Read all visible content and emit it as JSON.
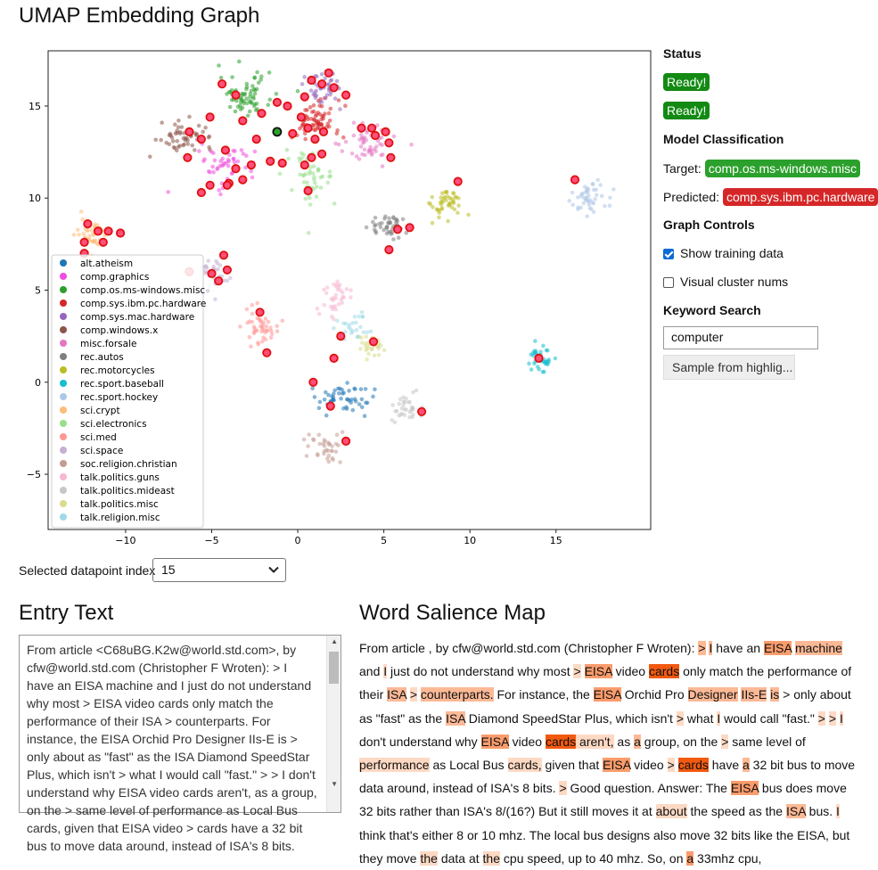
{
  "page_title": "UMAP Embedding Graph",
  "status": {
    "heading": "Status",
    "badges": [
      "Ready!",
      "Ready!"
    ]
  },
  "model": {
    "heading": "Model Classification",
    "target_label": "Target:",
    "target_value": "comp.os.ms-windows.misc",
    "predicted_label": "Predicted:",
    "predicted_value": "comp.sys.ibm.pc.hardware"
  },
  "graph_controls": {
    "heading": "Graph Controls",
    "show_training": {
      "label": "Show training data",
      "checked": true
    },
    "cluster_nums": {
      "label": "Visual cluster nums",
      "checked": false
    }
  },
  "keyword": {
    "heading": "Keyword Search",
    "value": "computer",
    "button": "Sample from highlig..."
  },
  "selection": {
    "label": "Selected datapoint index",
    "value": "15"
  },
  "entry": {
    "heading": "Entry Text",
    "text": "From article <C68uBG.K2w@world.std.com>, by cfw@world.std.com (Christopher F Wroten): > I have an EISA machine and I just do not understand why most > EISA video cards only match the performance of their ISA > counterparts. For instance, the EISA Orchid Pro Designer IIs-E is > only about as \"fast\" as the ISA Diamond SpeedStar Plus, which isn't > what I would call \"fast.\" > > I don't understand why EISA video cards aren't, as a group, on the > same level of performance as Local Bus cards, given that EISA video > cards have a 32 bit bus to move data around, instead of ISA's 8 bits."
  },
  "salience": {
    "heading": "Word Salience Map",
    "tokens": [
      {
        "t": "From article , by cfw@world.std.com (Christopher F Wroten): ",
        "w": 0
      },
      {
        "t": ">",
        "w": 2
      },
      {
        "t": " ",
        "w": 0
      },
      {
        "t": "I",
        "w": 2
      },
      {
        "t": " have an ",
        "w": 0
      },
      {
        "t": "EISA",
        "w": 3
      },
      {
        "t": " ",
        "w": 0
      },
      {
        "t": "machine",
        "w": 2
      },
      {
        "t": " and ",
        "w": 0
      },
      {
        "t": "I",
        "w": 1
      },
      {
        "t": " just do not understand why most ",
        "w": 0
      },
      {
        "t": ">",
        "w": 1
      },
      {
        "t": " ",
        "w": 0
      },
      {
        "t": "EISA",
        "w": 3
      },
      {
        "t": " video ",
        "w": 0
      },
      {
        "t": "cards",
        "w": 4
      },
      {
        "t": " only match the performance of their ",
        "w": 0
      },
      {
        "t": "ISA",
        "w": 2
      },
      {
        "t": " ",
        "w": 0
      },
      {
        "t": ">",
        "w": 1
      },
      {
        "t": " ",
        "w": 0
      },
      {
        "t": "counterparts.",
        "w": 2
      },
      {
        "t": " For instance, the ",
        "w": 0
      },
      {
        "t": "EISA",
        "w": 3
      },
      {
        "t": " Orchid Pro ",
        "w": 0
      },
      {
        "t": "Designer",
        "w": 2
      },
      {
        "t": " ",
        "w": 0
      },
      {
        "t": "IIs-E",
        "w": 2
      },
      {
        "t": " ",
        "w": 0
      },
      {
        "t": "is",
        "w": 2
      },
      {
        "t": " > only about as \"fast\" as the ",
        "w": 0
      },
      {
        "t": "ISA",
        "w": 2
      },
      {
        "t": " Diamond SpeedStar Plus, which isn't ",
        "w": 0
      },
      {
        "t": ">",
        "w": 1
      },
      {
        "t": " what ",
        "w": 0
      },
      {
        "t": "I",
        "w": 1
      },
      {
        "t": " would call \"fast.\" ",
        "w": 0
      },
      {
        "t": ">",
        "w": 1
      },
      {
        "t": " ",
        "w": 0
      },
      {
        "t": ">",
        "w": 1
      },
      {
        "t": " ",
        "w": 0
      },
      {
        "t": "I",
        "w": 1
      },
      {
        "t": " don't understand why ",
        "w": 0
      },
      {
        "t": "EISA",
        "w": 3
      },
      {
        "t": " video ",
        "w": 0
      },
      {
        "t": "cards",
        "w": 4
      },
      {
        "t": " aren't,",
        "w": 1
      },
      {
        "t": " as ",
        "w": 0
      },
      {
        "t": "a",
        "w": 2
      },
      {
        "t": " group, on the ",
        "w": 0
      },
      {
        "t": ">",
        "w": 1
      },
      {
        "t": " same level of ",
        "w": 0
      },
      {
        "t": "performance",
        "w": 1
      },
      {
        "t": " as Local Bus ",
        "w": 0
      },
      {
        "t": "cards,",
        "w": 1
      },
      {
        "t": " given that ",
        "w": 0
      },
      {
        "t": "EISA",
        "w": 3
      },
      {
        "t": " video ",
        "w": 0
      },
      {
        "t": ">",
        "w": 1
      },
      {
        "t": " ",
        "w": 0
      },
      {
        "t": "cards",
        "w": 4
      },
      {
        "t": " have ",
        "w": 0
      },
      {
        "t": "a",
        "w": 2
      },
      {
        "t": " 32 bit bus to move data around, instead of ISA's 8 bits. ",
        "w": 0
      },
      {
        "t": ">",
        "w": 1
      },
      {
        "t": " Good",
        "w": 0
      },
      {
        "t": " question. Answer: The ",
        "w": 0
      },
      {
        "t": "EISA",
        "w": 3
      },
      {
        "t": " bus does move 32 bits rather than ISA's 8/(16?) But it still moves it at ",
        "w": 0
      },
      {
        "t": "about",
        "w": 1
      },
      {
        "t": " the speed as the ",
        "w": 0
      },
      {
        "t": "ISA",
        "w": 2
      },
      {
        "t": " bus. ",
        "w": 0
      },
      {
        "t": "I",
        "w": 1
      },
      {
        "t": " think that's either 8 or 10 mhz. The local bus designs also move",
        "w": 0
      },
      {
        "t": " 32 bits like the EISA, but they move ",
        "w": 0
      },
      {
        "t": "the",
        "w": 1
      },
      {
        "t": " data at ",
        "w": 0
      },
      {
        "t": "the",
        "w": 1
      },
      {
        "t": " cpu speed, up to 40 mhz. So, on ",
        "w": 0
      },
      {
        "t": "a",
        "w": 3
      },
      {
        "t": " 33mhz cpu,",
        "w": 0
      }
    ]
  },
  "chart_data": {
    "type": "scatter",
    "title": "",
    "xlabel": "",
    "ylabel": "",
    "xlim": [
      -14.5,
      20.5
    ],
    "ylim": [
      -8,
      18
    ],
    "xticks": [
      -10,
      -5,
      0,
      5,
      10,
      15
    ],
    "yticks": [
      -5,
      0,
      5,
      10,
      15
    ],
    "legend": {
      "position": "bottom-left",
      "entries": [
        {
          "name": "alt.atheism",
          "color": "#1f77b4"
        },
        {
          "name": "comp.graphics",
          "color": "#f14cdf"
        },
        {
          "name": "comp.os.ms-windows.misc",
          "color": "#2ca02c"
        },
        {
          "name": "comp.sys.ibm.pc.hardware",
          "color": "#d62728"
        },
        {
          "name": "comp.sys.mac.hardware",
          "color": "#9467bd"
        },
        {
          "name": "comp.windows.x",
          "color": "#8c564b"
        },
        {
          "name": "misc.forsale",
          "color": "#e377c2"
        },
        {
          "name": "rec.autos",
          "color": "#7f7f7f"
        },
        {
          "name": "rec.motorcycles",
          "color": "#bcbd22"
        },
        {
          "name": "rec.sport.baseball",
          "color": "#17becf"
        },
        {
          "name": "rec.sport.hockey",
          "color": "#aec7e8"
        },
        {
          "name": "sci.crypt",
          "color": "#ffbb78"
        },
        {
          "name": "sci.electronics",
          "color": "#98df8a"
        },
        {
          "name": "sci.med",
          "color": "#ff9896"
        },
        {
          "name": "sci.space",
          "color": "#c5b0d5"
        },
        {
          "name": "soc.religion.christian",
          "color": "#c49c94"
        },
        {
          "name": "talk.politics.guns",
          "color": "#f7b6d2"
        },
        {
          "name": "talk.politics.mideast",
          "color": "#c7c7c7"
        },
        {
          "name": "talk.politics.misc",
          "color": "#dbdb8d"
        },
        {
          "name": "talk.religion.misc",
          "color": "#9edae5"
        }
      ]
    },
    "clusters": [
      {
        "label": "comp.os.ms-windows.misc",
        "cx": -3.0,
        "cy": 15.6,
        "sx": 1.4,
        "sy": 1.0,
        "n": 70
      },
      {
        "label": "comp.sys.ibm.pc.hardware",
        "cx": 1.0,
        "cy": 14.2,
        "sx": 1.3,
        "sy": 1.1,
        "n": 70
      },
      {
        "label": "comp.sys.mac.hardware",
        "cx": 1.5,
        "cy": 16.0,
        "sx": 1.0,
        "sy": 0.9,
        "n": 45
      },
      {
        "label": "comp.windows.x",
        "cx": -6.5,
        "cy": 13.4,
        "sx": 1.4,
        "sy": 0.6,
        "n": 55
      },
      {
        "label": "comp.graphics",
        "cx": -4.0,
        "cy": 11.8,
        "sx": 1.5,
        "sy": 1.1,
        "n": 50
      },
      {
        "label": "misc.forsale",
        "cx": 4.0,
        "cy": 13.0,
        "sx": 1.5,
        "sy": 1.0,
        "n": 50
      },
      {
        "label": "sci.electronics",
        "cx": 0.8,
        "cy": 11.0,
        "sx": 1.4,
        "sy": 1.3,
        "n": 50
      },
      {
        "label": "sci.crypt",
        "cx": -12.0,
        "cy": 8.0,
        "sx": 0.8,
        "sy": 1.0,
        "n": 40
      },
      {
        "label": "sci.space",
        "cx": -4.8,
        "cy": 5.9,
        "sx": 0.8,
        "sy": 0.8,
        "n": 35
      },
      {
        "label": "rec.autos",
        "cx": 5.2,
        "cy": 8.4,
        "sx": 0.9,
        "sy": 0.7,
        "n": 45
      },
      {
        "label": "rec.motorcycles",
        "cx": 8.6,
        "cy": 9.8,
        "sx": 1.1,
        "sy": 0.8,
        "n": 45
      },
      {
        "label": "rec.sport.hockey",
        "cx": 17.0,
        "cy": 10.0,
        "sx": 0.9,
        "sy": 0.9,
        "n": 45
      },
      {
        "label": "rec.sport.baseball",
        "cx": 14.1,
        "cy": 1.3,
        "sx": 0.6,
        "sy": 0.6,
        "n": 40
      },
      {
        "label": "sci.med",
        "cx": -2.2,
        "cy": 3.1,
        "sx": 0.9,
        "sy": 0.9,
        "n": 45
      },
      {
        "label": "talk.politics.guns",
        "cx": 2.2,
        "cy": 4.6,
        "sx": 0.8,
        "sy": 1.0,
        "n": 35
      },
      {
        "label": "talk.politics.misc",
        "cx": 4.2,
        "cy": 1.9,
        "sx": 0.6,
        "sy": 0.6,
        "n": 30
      },
      {
        "label": "alt.atheism",
        "cx": 2.6,
        "cy": -0.8,
        "sx": 1.5,
        "sy": 0.7,
        "n": 50
      },
      {
        "label": "soc.religion.christian",
        "cx": 1.6,
        "cy": -3.6,
        "sx": 1.0,
        "sy": 0.9,
        "n": 35
      },
      {
        "label": "talk.politics.mideast",
        "cx": 6.4,
        "cy": -1.4,
        "sx": 1.1,
        "sy": 0.6,
        "n": 35
      },
      {
        "label": "talk.religion.misc",
        "cx": 3.2,
        "cy": 3.0,
        "sx": 0.9,
        "sy": 0.7,
        "n": 25
      }
    ],
    "highlighted_points": [
      [
        -12.2,
        8.6
      ],
      [
        -11.6,
        8.2
      ],
      [
        -12.4,
        7.6
      ],
      [
        -11.0,
        8.2
      ],
      [
        -12.4,
        7.0
      ],
      [
        -10.3,
        8.1
      ],
      [
        -11.3,
        7.6
      ],
      [
        -4.4,
        16.2
      ],
      [
        -3.6,
        15.6
      ],
      [
        -5.1,
        14.4
      ],
      [
        -5.6,
        13.2
      ],
      [
        -4.2,
        12.6
      ],
      [
        -3.6,
        11.6
      ],
      [
        -4.0,
        10.8
      ],
      [
        -3.2,
        11.0
      ],
      [
        -2.7,
        11.8
      ],
      [
        -1.6,
        12.0
      ],
      [
        -2.4,
        13.2
      ],
      [
        -6.4,
        12.2
      ],
      [
        -6.3,
        13.6
      ],
      [
        -3.2,
        14.2
      ],
      [
        -2.1,
        14.6
      ],
      [
        -1.2,
        15.2
      ],
      [
        -0.6,
        15.0
      ],
      [
        0.4,
        15.5
      ],
      [
        0.8,
        16.4
      ],
      [
        1.4,
        16.2
      ],
      [
        1.8,
        16.8
      ],
      [
        2.1,
        16.0
      ],
      [
        2.8,
        15.6
      ],
      [
        0.2,
        14.4
      ],
      [
        0.6,
        13.8
      ],
      [
        1.0,
        13.2
      ],
      [
        -0.3,
        13.5
      ],
      [
        1.5,
        13.6
      ],
      [
        0.8,
        12.2
      ],
      [
        1.4,
        12.4
      ],
      [
        0.4,
        11.8
      ],
      [
        -0.9,
        11.9
      ],
      [
        0.6,
        10.4
      ],
      [
        3.7,
        13.8
      ],
      [
        4.3,
        13.8
      ],
      [
        4.5,
        13.4
      ],
      [
        5.1,
        13.6
      ],
      [
        5.3,
        13.0
      ],
      [
        5.4,
        12.2
      ],
      [
        -5.6,
        10.3
      ],
      [
        -5.1,
        10.7
      ],
      [
        -4.1,
        10.7
      ],
      [
        -4.3,
        6.9
      ],
      [
        -4.1,
        6.1
      ],
      [
        -5.0,
        5.9
      ],
      [
        -4.6,
        5.5
      ],
      [
        -6.3,
        6.0
      ],
      [
        -2.2,
        3.8
      ],
      [
        -1.8,
        1.6
      ],
      [
        2.5,
        2.5
      ],
      [
        2.1,
        1.3
      ],
      [
        4.4,
        2.2
      ],
      [
        5.8,
        8.3
      ],
      [
        6.5,
        8.4
      ],
      [
        5.3,
        7.2
      ],
      [
        9.3,
        10.9
      ],
      [
        16.1,
        11.0
      ],
      [
        14.0,
        1.3
      ],
      [
        0.9,
        0.0
      ],
      [
        1.9,
        -1.3
      ],
      [
        2.8,
        -3.2
      ],
      [
        7.2,
        -1.6
      ]
    ],
    "selected_point": [
      -1.2,
      13.6
    ]
  }
}
